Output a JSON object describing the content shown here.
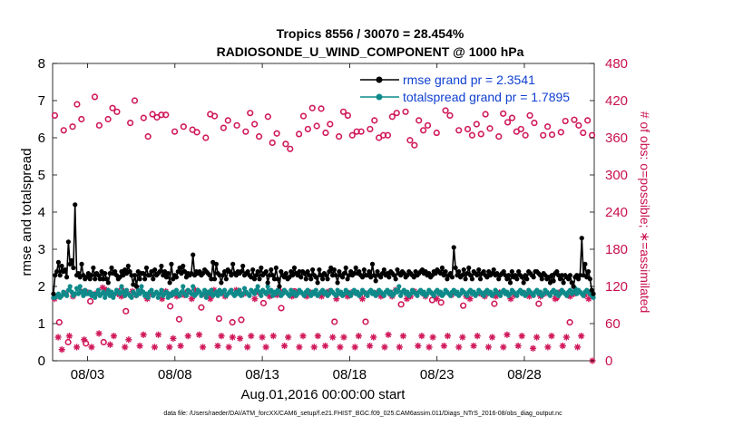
{
  "chart_data": {
    "type": "line",
    "title_line1": "Tropics 8556 / 30070 = 28.454%",
    "title_line2": "RADIOSONDE_U_WIND_COMPONENT @ 1000 hPa",
    "xlabel": "Aug.01,2016 00:00:00 start",
    "ylabel_left": "rmse and totalspread",
    "ylabel_right": "# of obs: o=possible; ∗=assimilated",
    "footnote": "data file: /Users/raeder/DAI/ATM_forcXX/CAM6_setup/f.e21.FHIST_BGC.f09_025.CAM6assim.011/Diags_NTrS_2016-08/obs_diag_output.nc",
    "x_ticks": [
      {
        "value": 3,
        "label": "08/03"
      },
      {
        "value": 8,
        "label": "08/08"
      },
      {
        "value": 13,
        "label": "08/13"
      },
      {
        "value": 18,
        "label": "08/18"
      },
      {
        "value": 23,
        "label": "08/23"
      },
      {
        "value": 28,
        "label": "08/28"
      }
    ],
    "xlim": [
      1.0,
      32.0
    ],
    "ylim_left": [
      0,
      8
    ],
    "ylim_right": [
      0,
      480
    ],
    "y_ticks_left": [
      "0",
      "1",
      "2",
      "3",
      "4",
      "5",
      "6",
      "7",
      "8"
    ],
    "y_ticks_right": [
      "0",
      "60",
      "120",
      "180",
      "240",
      "300",
      "360",
      "420",
      "480"
    ],
    "grid": false,
    "legend_position": "top-right",
    "colors": {
      "rmse": "#000000",
      "spread": "#0f8a8a",
      "obs": "#d0185a"
    },
    "series": [
      {
        "name": "rmse grand pr = 2.3541",
        "axis": "left",
        "style": "line-dot",
        "values": [
          1.8,
          2.3,
          2.4,
          2.65,
          2.3,
          2.55,
          2.4,
          2.45,
          2.25,
          3.2,
          2.6,
          2.7,
          2.5,
          4.2,
          2.3,
          2.35,
          2.25,
          2.6,
          2.3,
          2.2,
          2.25,
          2.35,
          2.2,
          2.3,
          2.5,
          2.2,
          2.35,
          2.3,
          2.2,
          2.4,
          2.2,
          2.35,
          2.2,
          2.1,
          2.35,
          2.5,
          2.35,
          2.4,
          2.3,
          2.2,
          2.25,
          2.4,
          2.3,
          2.45,
          2.35,
          2.55,
          2.4,
          2.3,
          2.05,
          2.3,
          2.0,
          2.4,
          2.2,
          2.35,
          2.35,
          2.2,
          2.5,
          2.3,
          2.3,
          2.4,
          2.2,
          2.45,
          2.3,
          2.35,
          2.4,
          2.55,
          2.3,
          2.4,
          2.25,
          2.35,
          2.1,
          2.6,
          2.2,
          2.3,
          2.25,
          2.4,
          2.5,
          2.35,
          2.55,
          2.4,
          2.25,
          2.35,
          2.3,
          2.35,
          2.85,
          2.3,
          2.4,
          2.35,
          2.4,
          2.3,
          2.35,
          2.45,
          2.4,
          2.35,
          2.3,
          2.2,
          2.65,
          2.2,
          2.6,
          2.35,
          2.3,
          2.1,
          2.3,
          2.4,
          2.2,
          2.45,
          2.4,
          2.3,
          2.6,
          2.35,
          2.3,
          2.4,
          2.35,
          2.4,
          2.55,
          2.3,
          2.35,
          2.4,
          2.3,
          2.25,
          2.45,
          2.2,
          2.3,
          2.4,
          2.2,
          2.5,
          2.3,
          2.35,
          2.4,
          2.1,
          2.3,
          2.45,
          2.3,
          2.2,
          2.5,
          2.2,
          2.0,
          2.4,
          2.3,
          2.25,
          2.35,
          2.2,
          2.25,
          2.4,
          2.3,
          2.5,
          2.35,
          2.3,
          2.4,
          2.25,
          2.4,
          2.35,
          2.2,
          2.4,
          2.3,
          2.2,
          2.45,
          2.3,
          2.25,
          2.1,
          2.45,
          2.3,
          2.2,
          2.35,
          2.3,
          2.2,
          2.4,
          2.5,
          2.3,
          2.45,
          2.3,
          2.1,
          2.4,
          2.3,
          2.25,
          2.35,
          2.5,
          2.2,
          2.3,
          2.4,
          2.3,
          2.35,
          2.5,
          2.35,
          2.4,
          2.3,
          2.25,
          2.45,
          2.3,
          2.3,
          2.4,
          2.25,
          2.6,
          2.3,
          2.15,
          2.4,
          2.3,
          2.25,
          2.35,
          2.45,
          2.3,
          2.35,
          2.25,
          2.4,
          2.35,
          2.3,
          2.2,
          2.45,
          2.35,
          2.3,
          2.4,
          2.35,
          2.25,
          2.3,
          2.4,
          2.35,
          2.3,
          2.25,
          2.4,
          2.3,
          2.35,
          2.4,
          2.45,
          2.35,
          2.4,
          2.3,
          2.35,
          2.25,
          2.3,
          2.4,
          2.35,
          2.45,
          2.4,
          2.35,
          2.5,
          2.3,
          2.4,
          2.2,
          2.3,
          2.35,
          2.25,
          3.05,
          2.5,
          2.3,
          2.4,
          2.25,
          2.3,
          2.45,
          2.2,
          2.35,
          2.5,
          2.3,
          2.2,
          2.4,
          2.35,
          2.3,
          2.45,
          2.2,
          2.35,
          2.4,
          2.3,
          2.25,
          2.4,
          2.3,
          2.35,
          2.45,
          2.3,
          2.35,
          2.2,
          2.3,
          2.35,
          2.4,
          2.3,
          2.2,
          2.3,
          2.1,
          2.4,
          2.25,
          2.3,
          2.2,
          2.4,
          2.3,
          2.25,
          2.1,
          2.3,
          2.2,
          2.4,
          2.35,
          2.3,
          2.25,
          2.4,
          2.4,
          2.35,
          2.3,
          2.2,
          2.35,
          2.3,
          2.2,
          2.25,
          2.1,
          2.3,
          2.15,
          2.35,
          2.4,
          2.3,
          2.2,
          2.3,
          2.1,
          2.3,
          2.25,
          2.2,
          2.3,
          2.1,
          2.0,
          2.25,
          2.3,
          2.2,
          2.3,
          3.3,
          2.3,
          2.6,
          2.25,
          2.4,
          2.2,
          1.9,
          1.8
        ]
      },
      {
        "name": "totalspread grand pr = 1.7895",
        "axis": "left",
        "style": "line-dot",
        "values": [
          1.7,
          1.7,
          1.75,
          1.8,
          1.7,
          1.75,
          1.85,
          1.8,
          1.75,
          1.9,
          2.0,
          1.85,
          1.75,
          1.8,
          1.95,
          1.8,
          2.0,
          1.85,
          1.75,
          1.9,
          1.8,
          1.8,
          1.85,
          1.75,
          1.8,
          1.7,
          1.8,
          1.9,
          1.75,
          1.8,
          1.85,
          1.7,
          1.8,
          1.9,
          1.75,
          1.85,
          1.7,
          1.8,
          1.9,
          1.85,
          1.8,
          2.0,
          1.85,
          1.75,
          1.9,
          1.8,
          1.75,
          1.7,
          1.85,
          1.8,
          1.75,
          1.9,
          1.8,
          2.0,
          1.85,
          1.75,
          1.8,
          1.7,
          1.85,
          1.9,
          1.75,
          1.8,
          1.85,
          1.7,
          1.8,
          1.9,
          1.75,
          1.8,
          1.85,
          1.7,
          1.8,
          1.75,
          1.85,
          1.8,
          1.9,
          1.8,
          1.75,
          1.85,
          2.0,
          1.8,
          1.75,
          1.9,
          1.85,
          1.8,
          2.0,
          1.75,
          1.8,
          1.9,
          1.85,
          1.75,
          1.8,
          1.9,
          1.7,
          1.85,
          1.8,
          1.9,
          1.75,
          1.8,
          1.85,
          1.75,
          1.9,
          1.8,
          1.85,
          1.9,
          1.75,
          1.8,
          1.85,
          1.9,
          1.8,
          1.75,
          1.85,
          1.8,
          1.9,
          1.75,
          1.8,
          1.95,
          1.85,
          1.8,
          1.75,
          1.9,
          1.85,
          1.8,
          1.9,
          2.0,
          1.85,
          1.75,
          1.9,
          1.85,
          1.8,
          2.0,
          1.85,
          1.9,
          1.75,
          1.85,
          1.8,
          1.9,
          1.85,
          1.75,
          1.8,
          1.9,
          1.85,
          1.8,
          1.75,
          1.9,
          1.8,
          1.85,
          1.75,
          1.8,
          1.9,
          1.85,
          1.8,
          1.75,
          1.85,
          1.9,
          1.8,
          1.75,
          1.85,
          1.8,
          1.9,
          1.75,
          1.8,
          1.85,
          1.9,
          1.8,
          1.85,
          1.75,
          1.8,
          1.9,
          1.85,
          1.8,
          1.75,
          1.9,
          1.8,
          1.85,
          1.75,
          1.8,
          1.9,
          1.85,
          1.8,
          1.75,
          1.85,
          1.9,
          1.8,
          1.85,
          1.75,
          1.8,
          1.9,
          1.85,
          1.8,
          1.75,
          1.85,
          1.9,
          1.8,
          1.85,
          1.75,
          1.8,
          1.9,
          1.85,
          1.8,
          1.75,
          1.85,
          1.9,
          1.8,
          1.85,
          1.75,
          1.8,
          1.9,
          1.85,
          2.0,
          1.75,
          1.85,
          1.9,
          1.8,
          1.85,
          1.75,
          1.8,
          1.9,
          1.85,
          1.8,
          1.75,
          1.85,
          1.9,
          1.8,
          1.85,
          1.75,
          1.8,
          1.9,
          1.85,
          1.8,
          1.75,
          1.85,
          1.9,
          1.8,
          1.85,
          1.75,
          1.8,
          1.9,
          1.85,
          1.8,
          1.75,
          1.85,
          1.9,
          1.8,
          1.85,
          1.75,
          1.8,
          1.9,
          1.85,
          1.8,
          1.75,
          1.85,
          1.9,
          1.8,
          1.85,
          1.75,
          1.8,
          1.9,
          1.85,
          1.8,
          1.75,
          1.85,
          1.9,
          1.8,
          1.85,
          1.75,
          1.8,
          1.9,
          1.85,
          1.8,
          1.75,
          1.85,
          1.9,
          1.8,
          1.85,
          1.75,
          1.8,
          1.9,
          1.85,
          1.8,
          1.75,
          1.85,
          1.9,
          1.8,
          1.85,
          1.75,
          1.8,
          1.9,
          1.85,
          1.8,
          1.75,
          1.85,
          1.9,
          1.8,
          1.85,
          1.75,
          1.8,
          1.9,
          1.85,
          1.8,
          1.75,
          1.85,
          1.9,
          1.8,
          1.85,
          1.75,
          1.8,
          1.9,
          1.85,
          1.8,
          1.75,
          1.85,
          1.9,
          1.8,
          1.85,
          1.95,
          1.8,
          1.9,
          1.85,
          1.8,
          1.75,
          1.85,
          1.9,
          1.85,
          1.8,
          1.75,
          1.7
        ]
      },
      {
        "name": "obs possible",
        "axis": "right",
        "style": "open-circle",
        "values": [
          396,
          62,
          372,
          30,
          378,
          414,
          390,
          28,
          96,
          426,
          380,
          30,
          390,
          408,
          402,
          114,
          80,
          384,
          420,
          116,
          392,
          362,
          398,
          393,
          397,
          397,
          88,
          370,
          67,
          378,
          112,
          373,
          369,
          86,
          360,
          398,
          395,
          68,
          376,
          388,
          62,
          380,
          66,
          370,
          400,
          382,
          362,
          93,
          394,
          352,
          367,
          85,
          350,
          342,
          112,
          366,
          395,
          374,
          408,
          379,
          407,
          368,
          382,
          63,
          362,
          402,
          396,
          364,
          370,
          370,
          63,
          374,
          388,
          360,
          364,
          364,
          394,
          400,
          91,
          402,
          356,
          348,
          388,
          372,
          380,
          98,
          368,
          94,
          404,
          396,
          420,
          372,
          89,
          374,
          364,
          382,
          366,
          398,
          375,
          92,
          362,
          399,
          385,
          392,
          370,
          374,
          364,
          396,
          384,
          92,
          364,
          378,
          365,
          102,
          369,
          387,
          62,
          389,
          380,
          368,
          388,
          364
        ]
      },
      {
        "name": "obs assimilated",
        "axis": "right",
        "style": "asterisk",
        "values": [
          100,
          38,
          18,
          108,
          40,
          104,
          22,
          112,
          34,
          110,
          22,
          108,
          44,
          118,
          114,
          26,
          40,
          108,
          104,
          22,
          34,
          112,
          106,
          24,
          42,
          100,
          108,
          22,
          42,
          100,
          112,
          22,
          36,
          104,
          24,
          106,
          40,
          100,
          114,
          42,
          22,
          104,
          100,
          114,
          24,
          40,
          104,
          22,
          38,
          114,
          36,
          108,
          22,
          40,
          100,
          110,
          38,
          22,
          104,
          40,
          106,
          112,
          24,
          38,
          104,
          106,
          22,
          40,
          104,
          110,
          22,
          40,
          104,
          24,
          112,
          38,
          100,
          22,
          38,
          104,
          110,
          22,
          40,
          100,
          108,
          24,
          38,
          110,
          104,
          22,
          42,
          104,
          114,
          22,
          40,
          100,
          104,
          112,
          24,
          40,
          104,
          22,
          38,
          100,
          108,
          24,
          40,
          106,
          110,
          22,
          38,
          104,
          100,
          24,
          40,
          108,
          104,
          22,
          38,
          104,
          110,
          22,
          42,
          100,
          106,
          24,
          40,
          108,
          104,
          20,
          38,
          104,
          108,
          22,
          40,
          100,
          110,
          24,
          38,
          104,
          108,
          22,
          40,
          106,
          100,
          0
        ]
      }
    ]
  }
}
